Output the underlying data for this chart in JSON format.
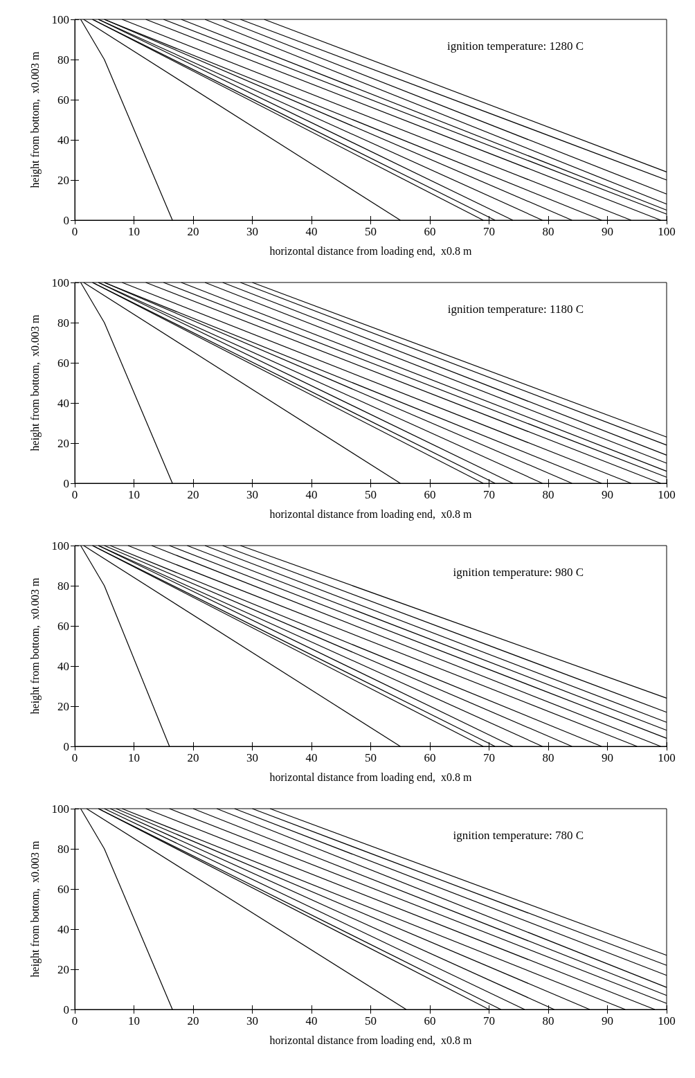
{
  "chart_data": [
    {
      "type": "line",
      "annotations": [
        "ignition temperature: 1280 C"
      ],
      "xlabel": "horizontal distance from loading end,  x0.8 m",
      "ylabel": "height from bottom,  x0.003 m",
      "xlim": [
        0,
        100
      ],
      "ylim": [
        0,
        100
      ],
      "xticks": [
        0,
        10,
        20,
        30,
        40,
        50,
        60,
        70,
        80,
        90,
        100
      ],
      "yticks": [
        0,
        20,
        40,
        60,
        80,
        100
      ],
      "series": [
        {
          "color": "#000000",
          "x": [
            1,
            5,
            16.5
          ],
          "values": [
            100,
            80,
            0
          ]
        },
        {
          "color": "#000000",
          "x": [
            1.5,
            55
          ],
          "values": [
            100,
            0
          ]
        },
        {
          "color": "#000000",
          "x": [
            3,
            69
          ],
          "values": [
            100,
            0
          ]
        },
        {
          "color": "#000000",
          "x": [
            3,
            71
          ],
          "values": [
            100,
            0
          ]
        },
        {
          "color": "#000000",
          "x": [
            4,
            74
          ],
          "values": [
            100,
            0
          ]
        },
        {
          "color": "#000000",
          "x": [
            4,
            79
          ],
          "values": [
            100,
            0
          ]
        },
        {
          "color": "#000000",
          "x": [
            5,
            84
          ],
          "values": [
            100,
            0
          ]
        },
        {
          "color": "#000000",
          "x": [
            5,
            89
          ],
          "values": [
            100,
            0
          ]
        },
        {
          "color": "#000000",
          "x": [
            8,
            94
          ],
          "values": [
            100,
            0
          ]
        },
        {
          "color": "#000000",
          "x": [
            12,
            99
          ],
          "values": [
            100,
            0
          ]
        },
        {
          "color": "#000000",
          "x": [
            15,
            100
          ],
          "values": [
            100,
            3
          ]
        },
        {
          "color": "#000000",
          "x": [
            18,
            100
          ],
          "values": [
            100,
            5
          ]
        },
        {
          "color": "#000000",
          "x": [
            22,
            100
          ],
          "values": [
            100,
            8
          ]
        },
        {
          "color": "#000000",
          "x": [
            25,
            100
          ],
          "values": [
            100,
            13
          ]
        },
        {
          "color": "#000000",
          "x": [
            28,
            100
          ],
          "values": [
            100,
            20
          ]
        },
        {
          "color": "#000000",
          "x": [
            32,
            100
          ],
          "values": [
            100,
            24
          ]
        }
      ]
    },
    {
      "type": "line",
      "annotations": [
        "ignition temperature: 1180 C"
      ],
      "xlabel": "horizontal distance from loading end,  x0.8 m",
      "ylabel": "height from bottom,  x0.003 m",
      "xlim": [
        0,
        100
      ],
      "ylim": [
        0,
        100
      ],
      "xticks": [
        0,
        10,
        20,
        30,
        40,
        50,
        60,
        70,
        80,
        90,
        100
      ],
      "yticks": [
        0,
        20,
        40,
        60,
        80,
        100
      ],
      "series": [
        {
          "color": "#000000",
          "x": [
            1,
            5,
            16.5
          ],
          "values": [
            100,
            80,
            0
          ]
        },
        {
          "color": "#000000",
          "x": [
            1.5,
            55
          ],
          "values": [
            100,
            0
          ]
        },
        {
          "color": "#000000",
          "x": [
            3,
            69
          ],
          "values": [
            100,
            0
          ]
        },
        {
          "color": "#000000",
          "x": [
            3,
            71
          ],
          "values": [
            100,
            0
          ]
        },
        {
          "color": "#000000",
          "x": [
            4,
            74
          ],
          "values": [
            100,
            0
          ]
        },
        {
          "color": "#000000",
          "x": [
            4,
            79
          ],
          "values": [
            100,
            0
          ]
        },
        {
          "color": "#000000",
          "x": [
            5,
            84
          ],
          "values": [
            100,
            0
          ]
        },
        {
          "color": "#000000",
          "x": [
            5,
            89
          ],
          "values": [
            100,
            0
          ]
        },
        {
          "color": "#000000",
          "x": [
            8,
            94
          ],
          "values": [
            100,
            0
          ]
        },
        {
          "color": "#000000",
          "x": [
            12,
            99
          ],
          "values": [
            100,
            0
          ]
        },
        {
          "color": "#000000",
          "x": [
            15,
            100
          ],
          "values": [
            100,
            3
          ]
        },
        {
          "color": "#000000",
          "x": [
            18,
            100
          ],
          "values": [
            100,
            6
          ]
        },
        {
          "color": "#000000",
          "x": [
            22,
            100
          ],
          "values": [
            100,
            10
          ]
        },
        {
          "color": "#000000",
          "x": [
            25,
            100
          ],
          "values": [
            100,
            14
          ]
        },
        {
          "color": "#000000",
          "x": [
            28,
            100
          ],
          "values": [
            100,
            19
          ]
        },
        {
          "color": "#000000",
          "x": [
            30,
            100
          ],
          "values": [
            100,
            23
          ]
        }
      ]
    },
    {
      "type": "line",
      "annotations": [
        "ignition temperature: 980 C"
      ],
      "xlabel": "horizontal distance from loading end,  x0.8 m",
      "ylabel": "height from bottom,  x0.003 m",
      "xlim": [
        0,
        100
      ],
      "ylim": [
        0,
        100
      ],
      "xticks": [
        0,
        10,
        20,
        30,
        40,
        50,
        60,
        70,
        80,
        90,
        100
      ],
      "yticks": [
        0,
        20,
        40,
        60,
        80,
        100
      ],
      "series": [
        {
          "color": "#000000",
          "x": [
            1,
            5,
            16
          ],
          "values": [
            100,
            80,
            0
          ]
        },
        {
          "color": "#000000",
          "x": [
            1.5,
            55
          ],
          "values": [
            100,
            0
          ]
        },
        {
          "color": "#000000",
          "x": [
            3,
            69
          ],
          "values": [
            100,
            0
          ]
        },
        {
          "color": "#000000",
          "x": [
            3,
            71
          ],
          "values": [
            100,
            0
          ]
        },
        {
          "color": "#000000",
          "x": [
            4,
            74
          ],
          "values": [
            100,
            0
          ]
        },
        {
          "color": "#000000",
          "x": [
            4,
            79
          ],
          "values": [
            100,
            0
          ]
        },
        {
          "color": "#000000",
          "x": [
            5,
            84
          ],
          "values": [
            100,
            0
          ]
        },
        {
          "color": "#000000",
          "x": [
            6,
            89
          ],
          "values": [
            100,
            0
          ]
        },
        {
          "color": "#000000",
          "x": [
            9,
            95
          ],
          "values": [
            100,
            0
          ]
        },
        {
          "color": "#000000",
          "x": [
            13,
            99
          ],
          "values": [
            100,
            0
          ]
        },
        {
          "color": "#000000",
          "x": [
            16,
            100
          ],
          "values": [
            100,
            4
          ]
        },
        {
          "color": "#000000",
          "x": [
            19,
            100
          ],
          "values": [
            100,
            8
          ]
        },
        {
          "color": "#000000",
          "x": [
            22,
            100
          ],
          "values": [
            100,
            12
          ]
        },
        {
          "color": "#000000",
          "x": [
            25,
            100
          ],
          "values": [
            100,
            17
          ]
        },
        {
          "color": "#000000",
          "x": [
            28,
            100
          ],
          "values": [
            100,
            24
          ]
        }
      ]
    },
    {
      "type": "line",
      "annotations": [
        "ignition temperature: 780 C"
      ],
      "xlabel": "horizontal distance from loading end,  x0.8 m",
      "ylabel": "height from bottom,  x0.003 m",
      "xlim": [
        0,
        100
      ],
      "ylim": [
        0,
        100
      ],
      "xticks": [
        0,
        10,
        20,
        30,
        40,
        50,
        60,
        70,
        80,
        90,
        100
      ],
      "yticks": [
        0,
        20,
        40,
        60,
        80,
        100
      ],
      "series": [
        {
          "color": "#000000",
          "x": [
            1,
            5,
            16.5
          ],
          "values": [
            100,
            80,
            0
          ]
        },
        {
          "color": "#000000",
          "x": [
            2,
            56
          ],
          "values": [
            100,
            0
          ]
        },
        {
          "color": "#000000",
          "x": [
            4,
            70
          ],
          "values": [
            100,
            0
          ]
        },
        {
          "color": "#000000",
          "x": [
            4,
            72
          ],
          "values": [
            100,
            0
          ]
        },
        {
          "color": "#000000",
          "x": [
            5,
            76
          ],
          "values": [
            100,
            0
          ]
        },
        {
          "color": "#000000",
          "x": [
            6,
            81
          ],
          "values": [
            100,
            0
          ]
        },
        {
          "color": "#000000",
          "x": [
            7,
            87
          ],
          "values": [
            100,
            0
          ]
        },
        {
          "color": "#000000",
          "x": [
            8,
            93
          ],
          "values": [
            100,
            0
          ]
        },
        {
          "color": "#000000",
          "x": [
            12,
            98
          ],
          "values": [
            100,
            0
          ]
        },
        {
          "color": "#000000",
          "x": [
            16,
            100
          ],
          "values": [
            100,
            3
          ]
        },
        {
          "color": "#000000",
          "x": [
            20,
            100
          ],
          "values": [
            100,
            7
          ]
        },
        {
          "color": "#000000",
          "x": [
            24,
            100
          ],
          "values": [
            100,
            11
          ]
        },
        {
          "color": "#000000",
          "x": [
            27,
            100
          ],
          "values": [
            100,
            17
          ]
        },
        {
          "color": "#000000",
          "x": [
            30,
            100
          ],
          "values": [
            100,
            22
          ]
        },
        {
          "color": "#000000",
          "x": [
            33,
            100
          ],
          "values": [
            100,
            27
          ]
        }
      ]
    }
  ]
}
